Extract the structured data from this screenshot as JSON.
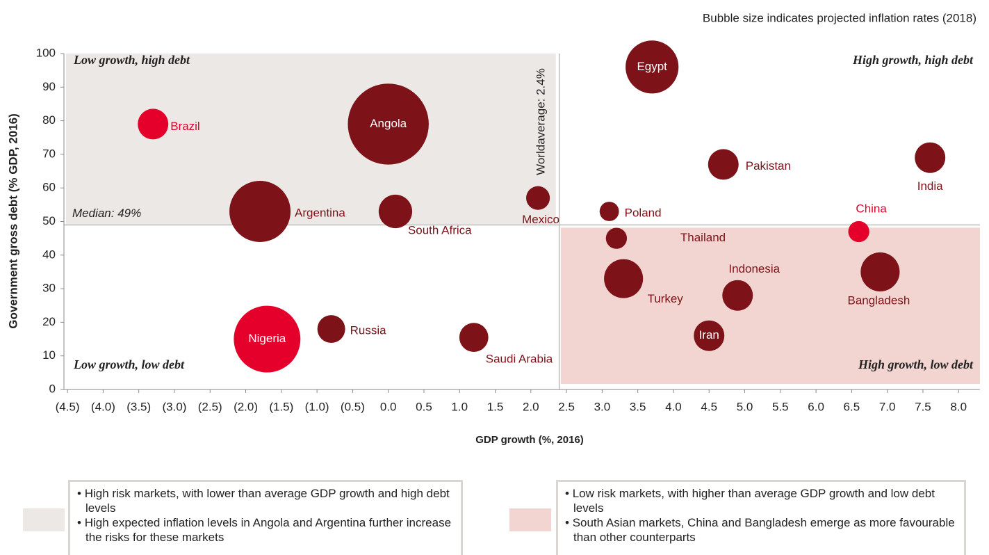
{
  "chart_data": {
    "type": "bubble",
    "note": "Bubble size indicates projected inflation rates (2018)",
    "xlabel": "GDP growth (%, 2016)",
    "ylabel": "Government gross debt (% GDP, 2016)",
    "labels": [
      "Brazil",
      "Angola",
      "Argentina",
      "South Africa",
      "Nigeria",
      "Russia",
      "Saudi Arabia",
      "Mexico",
      "Poland",
      "Thailand",
      "Egypt",
      "Turkey",
      "Pakistan",
      "Indonesia",
      "Iran",
      "China",
      "Bangladesh",
      "India"
    ],
    "x": [
      -3.3,
      0.0,
      -1.8,
      0.1,
      -1.7,
      -0.8,
      1.2,
      2.1,
      3.1,
      3.2,
      3.7,
      3.3,
      4.7,
      4.9,
      4.5,
      6.6,
      6.9,
      7.6
    ],
    "y": [
      79,
      79,
      53,
      53,
      15,
      18,
      15.5,
      57,
      53,
      45,
      96,
      33,
      67,
      28,
      16,
      47,
      35,
      69
    ],
    "sizes": [
      4,
      28,
      16,
      4.8,
      19,
      3.3,
      3.6,
      2.4,
      1.6,
      1.9,
      12,
      6.5,
      4,
      4,
      4,
      1.9,
      6.5,
      4
    ],
    "colors": [
      "#e4002b",
      "#7d1219",
      "#7d1219",
      "#7d1219",
      "#e4002b",
      "#7d1219",
      "#7d1219",
      "#7d1219",
      "#7d1219",
      "#7d1219",
      "#7d1219",
      "#7d1219",
      "#7d1219",
      "#7d1219",
      "#7d1219",
      "#e4002b",
      "#7d1219",
      "#7d1219"
    ],
    "median": {
      "value": 49,
      "label": "Median: 49%"
    },
    "world_average": {
      "value": 2.4,
      "label": "Worldaverage: 2.4%"
    },
    "quadrants": {
      "top_left": "Low growth, high debt",
      "top_right": "High growth, high debt",
      "bottom_left": "Low growth, low debt",
      "bottom_right": "High growth, low debt"
    },
    "xlim": [
      -4.55,
      8.3
    ],
    "ylim": [
      0,
      100
    ],
    "xticks": [
      {
        "value": -4.5,
        "label": "(4.5)"
      },
      {
        "value": -4.0,
        "label": "(4.0)"
      },
      {
        "value": -3.5,
        "label": "(3.5)"
      },
      {
        "value": -3.0,
        "label": "(3.0)"
      },
      {
        "value": -2.5,
        "label": "(2.5)"
      },
      {
        "value": -2.0,
        "label": "(2.0)"
      },
      {
        "value": -1.5,
        "label": "(1.5)"
      },
      {
        "value": -1.0,
        "label": "(1.0)"
      },
      {
        "value": -0.5,
        "label": "(0.5)"
      },
      {
        "value": 0,
        "label": "0.0"
      },
      0.5,
      {
        "value": 1,
        "label": "1.0"
      },
      1.5,
      {
        "value": 2,
        "label": "2.0"
      },
      2.5,
      {
        "value": 3,
        "label": "3.0"
      },
      3.5,
      {
        "value": 4,
        "label": "4.0"
      },
      4.5,
      {
        "value": 5,
        "label": "5.0"
      },
      5.5,
      {
        "value": 6,
        "label": "6.0"
      },
      6.5,
      {
        "value": 7,
        "label": "7.0"
      },
      7.5,
      {
        "value": 8,
        "label": "8.0"
      }
    ],
    "yticks": [
      0,
      10,
      20,
      30,
      40,
      50,
      60,
      70,
      80,
      90,
      100
    ]
  },
  "notes": {
    "left": [
      "High risk markets, with lower than average GDP growth and high debt levels",
      "High expected inflation levels in Angola and Argentina further increase the risks for these markets"
    ],
    "right": [
      "Low risk markets, with higher than average GDP growth and low debt levels",
      "South Asian markets, China and Bangladesh emerge as more favourable than other counterparts"
    ]
  }
}
